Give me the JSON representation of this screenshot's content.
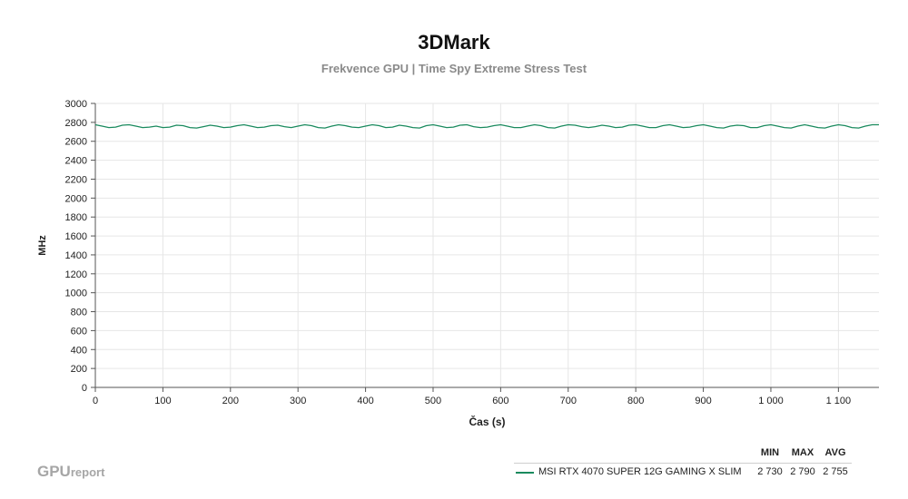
{
  "chart_data": {
    "type": "line",
    "title": "3DMark",
    "subtitle": "Frekvence GPU | Time Spy Extreme Stress Test",
    "xlabel": "Čas (s)",
    "ylabel": "MHz",
    "xlim": [
      0,
      1160
    ],
    "ylim": [
      0,
      3000
    ],
    "x_ticks": [
      0,
      100,
      200,
      300,
      400,
      500,
      600,
      700,
      800,
      900,
      1000,
      1100
    ],
    "x_tick_labels": [
      "0",
      "100",
      "200",
      "300",
      "400",
      "500",
      "600",
      "700",
      "800",
      "900",
      "1 000",
      "1 100"
    ],
    "y_ticks": [
      0,
      200,
      400,
      600,
      800,
      1000,
      1200,
      1400,
      1600,
      1800,
      2000,
      2200,
      2400,
      2600,
      2800,
      3000
    ],
    "y_tick_labels": [
      "0",
      "200",
      "400",
      "600",
      "800",
      "1000",
      "1200",
      "1400",
      "1600",
      "1800",
      "2000",
      "2200",
      "2400",
      "2600",
      "2800",
      "3000"
    ],
    "grid": true,
    "series": [
      {
        "name": "MSI RTX 4070 SUPER 12G GAMING X SLIM",
        "color": "#1a8a5e",
        "x": [
          0,
          10,
          20,
          30,
          40,
          50,
          60,
          70,
          80,
          90,
          100,
          110,
          120,
          130,
          140,
          150,
          160,
          170,
          180,
          190,
          200,
          210,
          220,
          230,
          240,
          250,
          260,
          270,
          280,
          290,
          300,
          310,
          320,
          330,
          340,
          350,
          360,
          370,
          380,
          390,
          400,
          410,
          420,
          430,
          440,
          450,
          460,
          470,
          480,
          490,
          500,
          510,
          520,
          530,
          540,
          550,
          560,
          570,
          580,
          590,
          600,
          610,
          620,
          630,
          640,
          650,
          660,
          670,
          680,
          690,
          700,
          710,
          720,
          730,
          740,
          750,
          760,
          770,
          780,
          790,
          800,
          810,
          820,
          830,
          840,
          850,
          860,
          870,
          880,
          890,
          900,
          910,
          920,
          930,
          940,
          950,
          960,
          970,
          980,
          990,
          1000,
          1010,
          1020,
          1030,
          1040,
          1050,
          1060,
          1070,
          1080,
          1090,
          1100,
          1110,
          1120,
          1130,
          1140,
          1150,
          1160
        ],
        "values": [
          2775,
          2760,
          2745,
          2750,
          2770,
          2775,
          2760,
          2745,
          2750,
          2760,
          2745,
          2750,
          2770,
          2765,
          2745,
          2740,
          2755,
          2770,
          2760,
          2745,
          2750,
          2765,
          2775,
          2760,
          2745,
          2750,
          2765,
          2770,
          2755,
          2745,
          2760,
          2775,
          2765,
          2745,
          2740,
          2760,
          2775,
          2765,
          2750,
          2745,
          2760,
          2775,
          2765,
          2745,
          2750,
          2770,
          2760,
          2745,
          2740,
          2765,
          2775,
          2760,
          2745,
          2750,
          2770,
          2775,
          2755,
          2745,
          2750,
          2765,
          2775,
          2760,
          2745,
          2745,
          2760,
          2775,
          2765,
          2745,
          2740,
          2760,
          2775,
          2770,
          2755,
          2745,
          2755,
          2770,
          2760,
          2745,
          2750,
          2770,
          2775,
          2760,
          2745,
          2745,
          2765,
          2775,
          2760,
          2745,
          2750,
          2765,
          2775,
          2760,
          2745,
          2740,
          2760,
          2770,
          2765,
          2745,
          2745,
          2765,
          2775,
          2760,
          2745,
          2740,
          2760,
          2775,
          2760,
          2745,
          2740,
          2760,
          2775,
          2765,
          2745,
          2740,
          2760,
          2775,
          2775
        ]
      }
    ]
  },
  "legend": {
    "headers": [
      "MIN",
      "MAX",
      "AVG"
    ],
    "rows": [
      {
        "name": "MSI RTX 4070 SUPER 12G GAMING X SLIM",
        "min": "2 730",
        "max": "2 790",
        "avg": "2 755",
        "color": "#1a8a5e"
      }
    ]
  },
  "brand": {
    "part1": "GPU",
    "part2": "report"
  }
}
